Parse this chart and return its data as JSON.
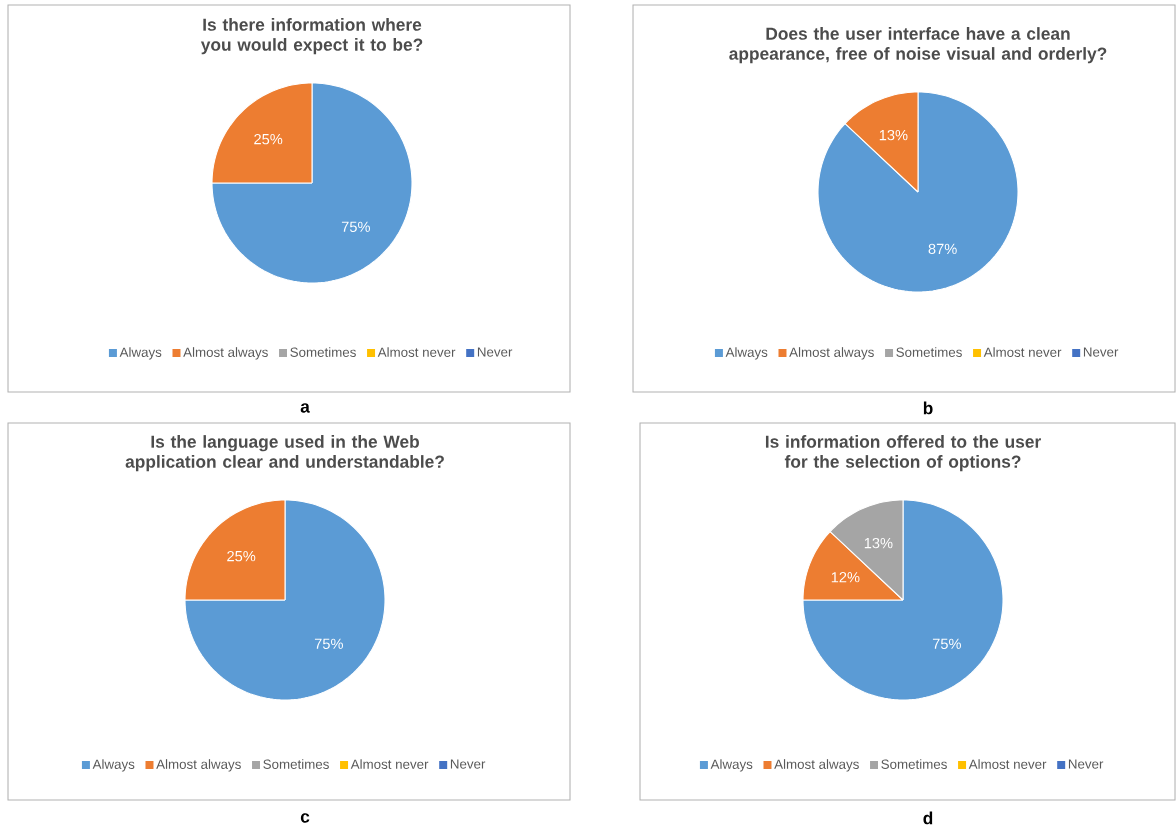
{
  "chart_data": [
    {
      "type": "pie",
      "title": "Is there information where you would expect it to be?",
      "categories": [
        "Always",
        "Almost always",
        "Sometimes",
        "Almost never",
        "Never"
      ],
      "values": [
        75,
        25,
        0,
        0,
        0
      ],
      "colors": [
        "#5b9bd5",
        "#ed7d31",
        "#a5a5a5",
        "#ffc000",
        "#4472c4"
      ],
      "value_labels": [
        "75%",
        "25%",
        null,
        null,
        null
      ],
      "legend": "bottom",
      "annotations": [
        "a"
      ]
    },
    {
      "type": "pie",
      "title": "Does the user interface have a clean appearance, free of noise visual and orderly?",
      "categories": [
        "Always",
        "Almost always",
        "Sometimes",
        "Almost never",
        "Never"
      ],
      "values": [
        87,
        13,
        0,
        0,
        0
      ],
      "colors": [
        "#5b9bd5",
        "#ed7d31",
        "#a5a5a5",
        "#ffc000",
        "#4472c4"
      ],
      "value_labels": [
        "87%",
        "13%",
        null,
        null,
        null
      ],
      "legend": "bottom",
      "annotations": [
        "b"
      ]
    },
    {
      "type": "pie",
      "title": "Is the language used in the Web application clear and understandable?",
      "categories": [
        "Always",
        "Almost always",
        "Sometimes",
        "Almost never",
        "Never"
      ],
      "values": [
        75,
        25,
        0,
        0,
        0
      ],
      "colors": [
        "#5b9bd5",
        "#ed7d31",
        "#a5a5a5",
        "#ffc000",
        "#4472c4"
      ],
      "value_labels": [
        "75%",
        "25%",
        null,
        null,
        null
      ],
      "legend": "bottom",
      "annotations": [
        "c"
      ]
    },
    {
      "type": "pie",
      "title": "Is information offered to the user for the selection of options?",
      "categories": [
        "Always",
        "Almost always",
        "Sometimes",
        "Almost never",
        "Never"
      ],
      "values": [
        75,
        12,
        13,
        0,
        0
      ],
      "colors": [
        "#5b9bd5",
        "#ed7d31",
        "#a5a5a5",
        "#ffc000",
        "#4472c4"
      ],
      "value_labels": [
        "75%",
        "12%",
        "13%",
        null,
        null
      ],
      "legend": "bottom",
      "annotations": [
        "d"
      ]
    }
  ]
}
